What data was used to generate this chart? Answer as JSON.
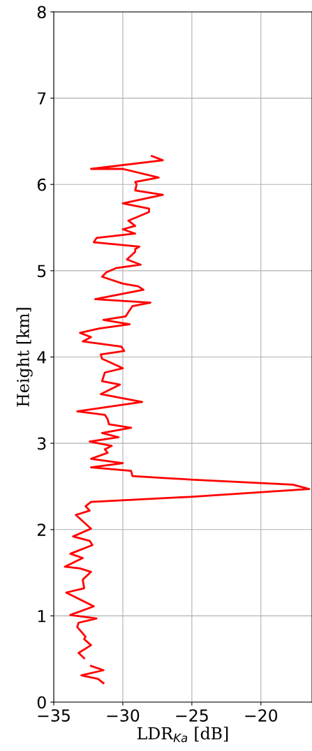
{
  "chart_data": {
    "type": "line",
    "xlabel": "LDR$_{Ka}$ [dB]",
    "ylabel": "Height [km]",
    "xlim": [
      -35,
      -16.3
    ],
    "xticks": [
      {
        "value": -35,
        "label": "−35"
      },
      {
        "value": -30,
        "label": "−30"
      },
      {
        "value": -25,
        "label": "−25"
      },
      {
        "value": -20,
        "label": "−20"
      }
    ],
    "ylim": [
      0,
      8
    ],
    "yticks": [
      0,
      1,
      2,
      3,
      4,
      5,
      6,
      7,
      8
    ],
    "grid": true,
    "legend": false,
    "line_style": "solid",
    "marker": "none",
    "series": [
      {
        "color": "#ff0000",
        "x": [
          -31.4,
          -31.8,
          -33.0,
          -31.4,
          -32.3,
          null,
          -32.8,
          -33.2,
          -32.3,
          -32.8,
          -32.7,
          -33.3,
          -33.2,
          -31.9,
          -33.8,
          -32.1,
          -34.1,
          -32.8,
          -32.9,
          -32.3,
          -33.1,
          -34.2,
          -32.9,
          -33.8,
          -32.2,
          -32.4,
          -33.6,
          -32.3,
          -33.4,
          -32.4,
          -32.7,
          -32.3,
          -25.1,
          -16.5,
          -17.7,
          -25.1,
          -29.3,
          -29.4,
          -32.3,
          -30.0,
          -32.3,
          -31.1,
          -31.3,
          -30.8,
          -32.4,
          -30.3,
          -31.5,
          -29.4,
          -31.0,
          -31.1,
          -31.3,
          -33.3,
          -28.6,
          -31.6,
          -30.2,
          -31.5,
          -31.3,
          -30.0,
          -31.5,
          -31.6,
          -29.9,
          -30.1,
          -32.9,
          -32.3,
          -33.1,
          -31.7,
          -29.5,
          -31.4,
          -29.8,
          -29.6,
          -29.3,
          -28.0,
          -32.0,
          -28.5,
          -28.9,
          -30.0,
          -31.5,
          -31.2,
          -30.5,
          -28.7,
          -29.7,
          -29.1,
          -29.1,
          -28.8,
          -32.1,
          -31.9,
          -29.1,
          -30.0,
          -29.1,
          -29.6,
          -28.1,
          -28.1,
          -30.0,
          -27.1,
          -29.1,
          -29.0,
          -29.1,
          -27.4,
          -30.0,
          -32.3,
          -27.1,
          -27.9
        ],
        "values": [
          0.22,
          0.27,
          0.31,
          0.37,
          0.42,
          null,
          0.51,
          0.57,
          0.66,
          0.73,
          0.76,
          0.87,
          0.92,
          0.97,
          1.01,
          1.11,
          1.27,
          1.32,
          1.42,
          1.51,
          1.55,
          1.57,
          1.67,
          1.72,
          1.82,
          1.87,
          1.92,
          2.01,
          2.17,
          2.22,
          2.27,
          2.32,
          2.38,
          2.47,
          2.52,
          2.58,
          2.62,
          2.68,
          2.72,
          2.77,
          2.82,
          2.89,
          2.93,
          2.97,
          3.02,
          3.07,
          3.12,
          3.18,
          3.22,
          3.28,
          3.33,
          3.37,
          3.48,
          3.57,
          3.68,
          3.72,
          3.82,
          3.87,
          3.98,
          4.03,
          4.07,
          4.12,
          4.18,
          4.23,
          4.28,
          4.33,
          4.38,
          4.43,
          4.47,
          4.52,
          4.59,
          4.63,
          4.67,
          4.78,
          4.82,
          4.85,
          4.93,
          4.98,
          5.03,
          5.07,
          5.13,
          5.22,
          5.25,
          5.28,
          5.33,
          5.38,
          5.43,
          5.48,
          5.52,
          5.58,
          5.68,
          5.72,
          5.78,
          5.88,
          5.93,
          6.0,
          6.03,
          6.08,
          6.18,
          6.18,
          6.28,
          6.33
        ]
      }
    ]
  }
}
